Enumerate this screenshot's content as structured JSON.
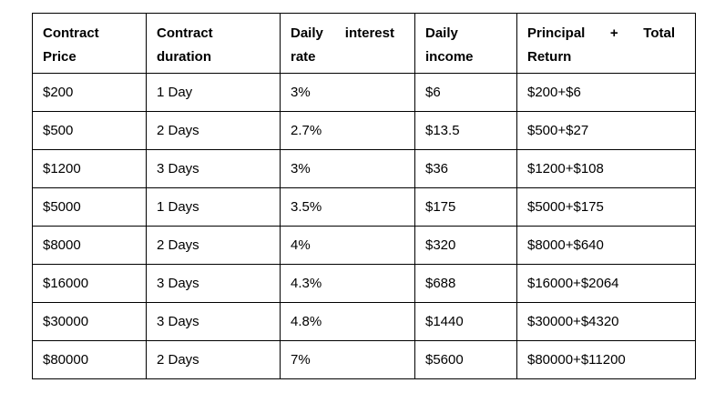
{
  "document": {
    "background_color": "#ffffff",
    "text_color": "#000000",
    "border_color": "#000000"
  },
  "table": {
    "headers": [
      "Contract Price",
      "Contract duration",
      "Daily interest rate",
      "Daily income",
      "Principal + Total Return"
    ],
    "rows": [
      [
        "$200",
        "1 Day",
        "3%",
        "$6",
        "$200+$6"
      ],
      [
        "$500",
        "2 Days",
        "2.7%",
        "$13.5",
        "$500+$27"
      ],
      [
        "$1200",
        "3 Days",
        "3%",
        "$36",
        "$1200+$108"
      ],
      [
        "$5000",
        "1 Days",
        "3.5%",
        "$175",
        "$5000+$175"
      ],
      [
        "$8000",
        "2 Days",
        "4%",
        "$320",
        "$8000+$640"
      ],
      [
        "$16000",
        "3 Days",
        "4.3%",
        "$688",
        "$16000+$2064"
      ],
      [
        "$30000",
        "3 Days",
        "4.8%",
        "$1440",
        "$30000+$4320"
      ],
      [
        "$80000",
        "2 Days",
        "7%",
        "$5600",
        "$80000+$11200"
      ]
    ]
  }
}
